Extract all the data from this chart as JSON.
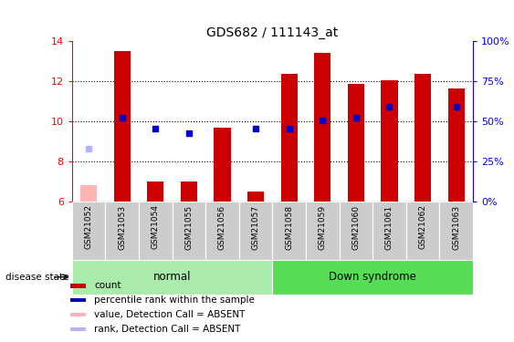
{
  "title": "GDS682 / 111143_at",
  "samples": [
    "GSM21052",
    "GSM21053",
    "GSM21054",
    "GSM21055",
    "GSM21056",
    "GSM21057",
    "GSM21058",
    "GSM21059",
    "GSM21060",
    "GSM21061",
    "GSM21062",
    "GSM21063"
  ],
  "red_bars": [
    6.85,
    13.5,
    7.0,
    7.0,
    9.7,
    6.5,
    12.35,
    13.4,
    11.85,
    12.05,
    12.35,
    11.65
  ],
  "blue_dots": [
    null,
    10.2,
    9.65,
    9.4,
    null,
    9.65,
    9.65,
    10.05,
    10.2,
    10.75,
    null,
    10.75
  ],
  "absent_red_val": 6.85,
  "absent_red_idx": 0,
  "absent_blue_val": 8.65,
  "absent_blue_idx": 0,
  "normal_samples": [
    0,
    1,
    2,
    3,
    4,
    5
  ],
  "down_samples": [
    6,
    7,
    8,
    9,
    10,
    11
  ],
  "ylim_left": [
    6,
    14
  ],
  "ylim_right": [
    0,
    100
  ],
  "yticks_left": [
    6,
    8,
    10,
    12,
    14
  ],
  "yticks_right": [
    0,
    25,
    50,
    75,
    100
  ],
  "right_tick_labels": [
    "0%",
    "25%",
    "50%",
    "75%",
    "100%"
  ],
  "bar_color": "#cc0000",
  "dot_color": "#0000cc",
  "absent_bar_color": "#ffb3b3",
  "absent_dot_color": "#b3b3ff",
  "normal_bg": "#aaeaaa",
  "down_bg": "#55dd55",
  "label_bg": "#cccccc",
  "bg_white": "#ffffff",
  "disease_label": "disease state",
  "normal_label": "normal",
  "down_label": "Down syndrome",
  "legend_items": [
    {
      "color": "#cc0000",
      "label": "count"
    },
    {
      "color": "#0000cc",
      "label": "percentile rank within the sample"
    },
    {
      "color": "#ffb3b3",
      "label": "value, Detection Call = ABSENT"
    },
    {
      "color": "#b3b3ff",
      "label": "rank, Detection Call = ABSENT"
    }
  ]
}
